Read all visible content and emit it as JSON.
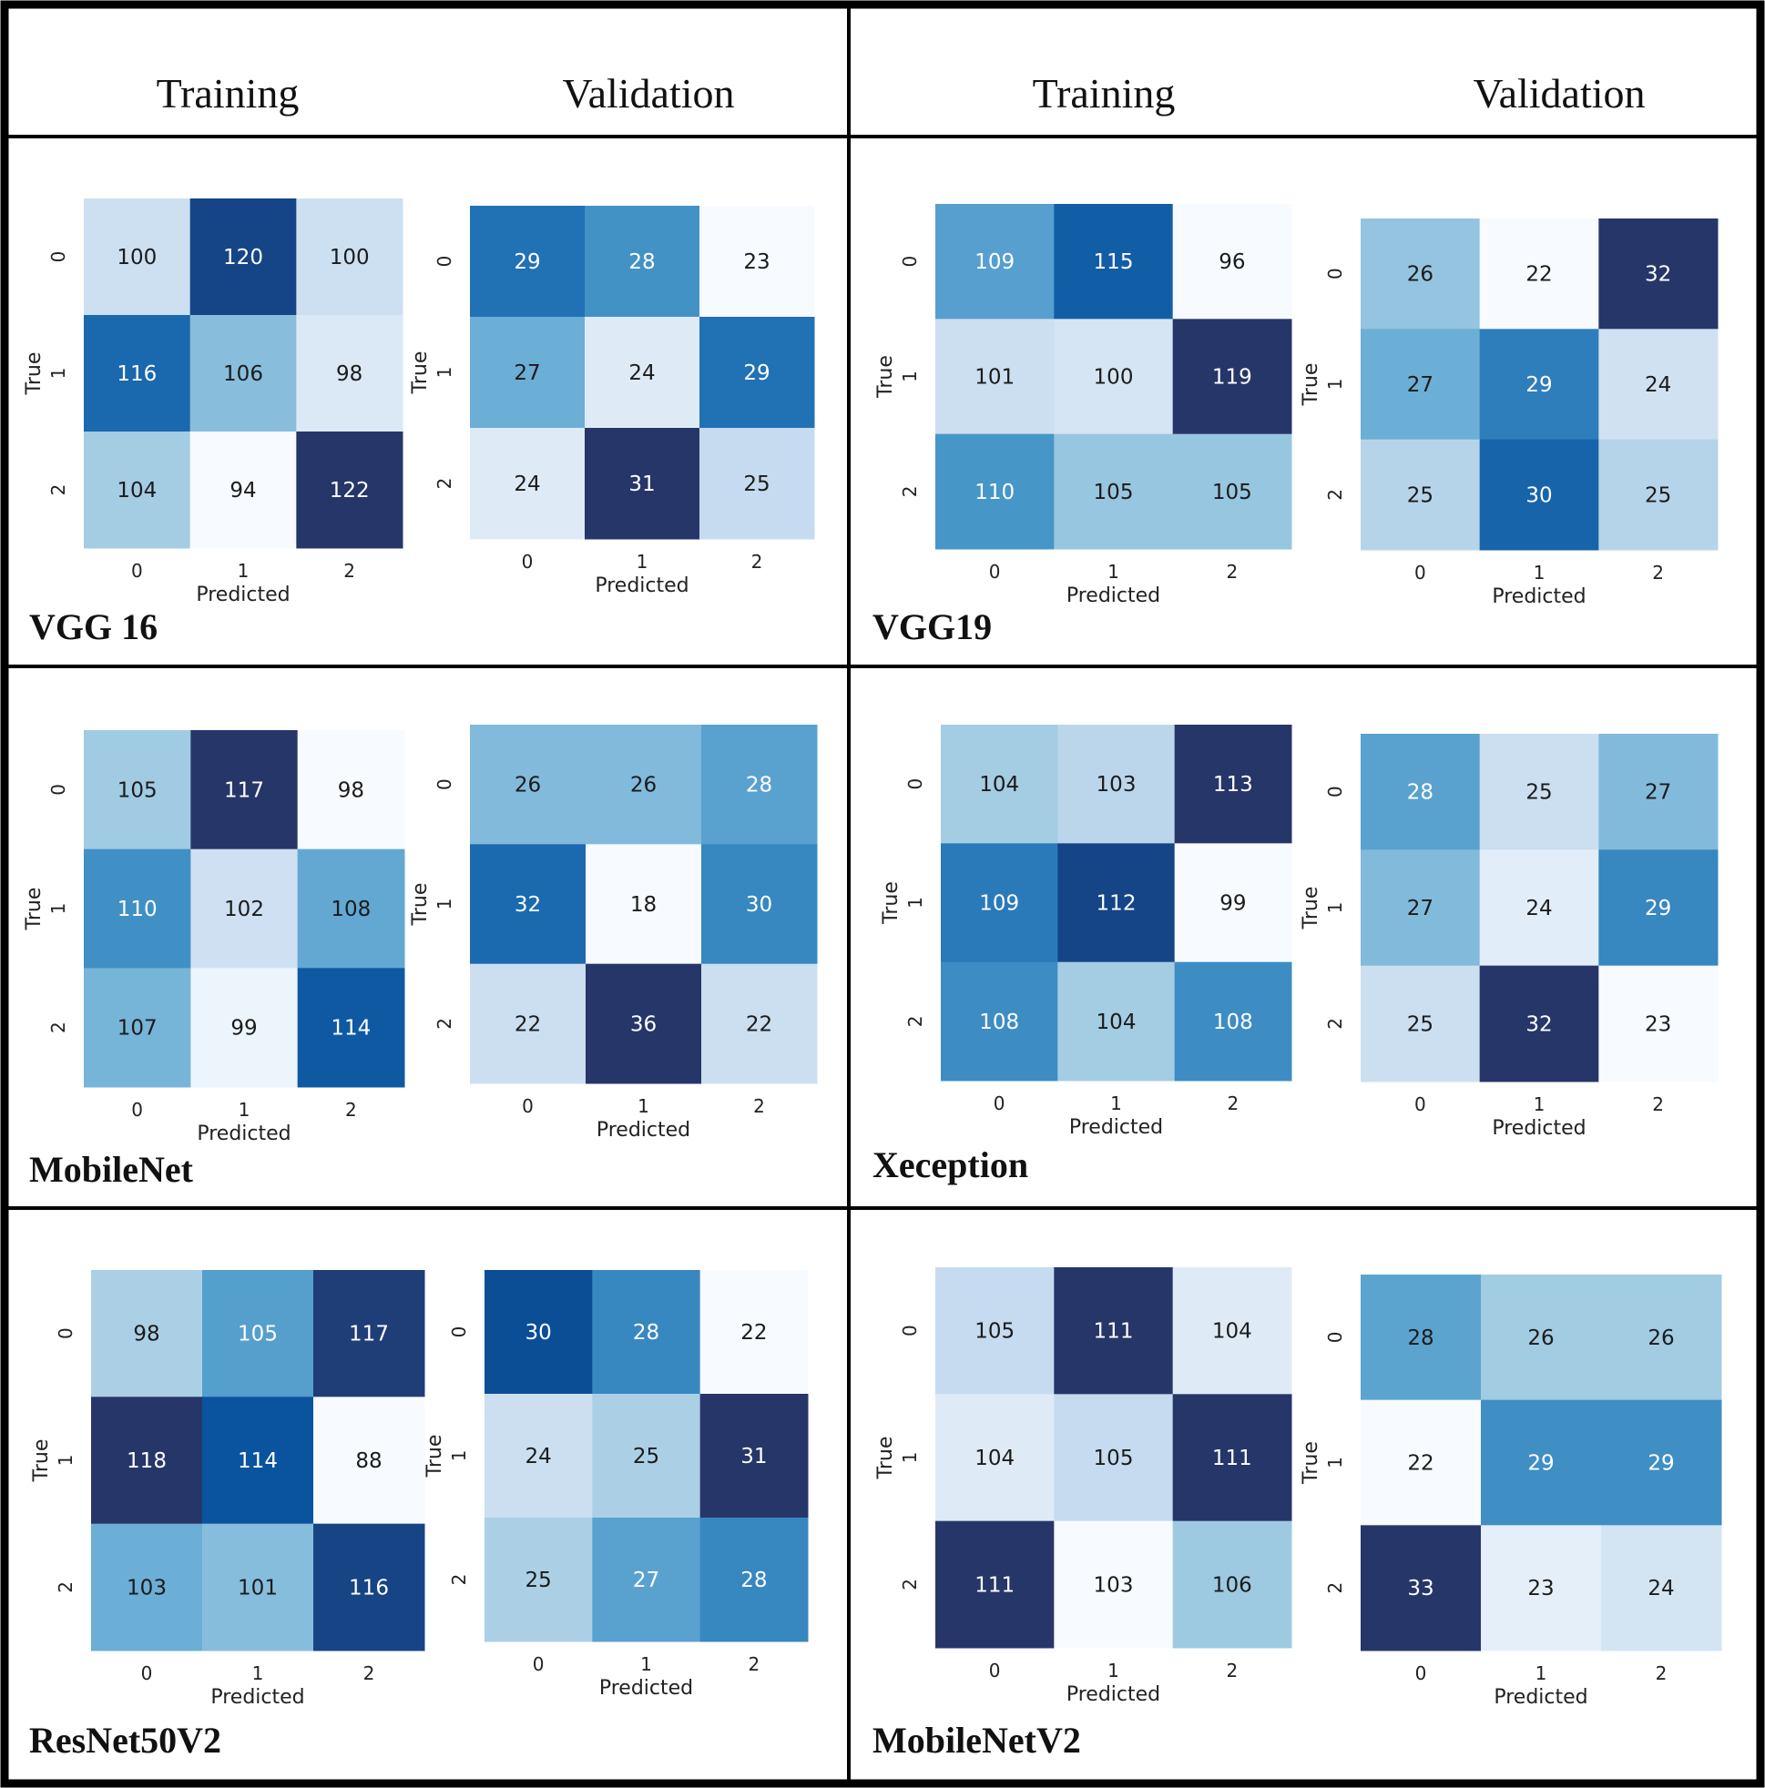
{
  "headers": {
    "left_training": "Training",
    "left_validation": "Validation",
    "right_training": "Training",
    "right_validation": "Validation"
  },
  "chart_data": [
    {
      "type": "heatmap",
      "model": "VGG 16",
      "split": "Training",
      "xlabel": "Predicted",
      "ylabel": "True",
      "x_ticks": [
        "0",
        "1",
        "2"
      ],
      "y_ticks": [
        "0",
        "1",
        "2"
      ],
      "matrix": [
        [
          100,
          120,
          100
        ],
        [
          116,
          106,
          98
        ],
        [
          104,
          94,
          122
        ]
      ]
    },
    {
      "type": "heatmap",
      "model": "VGG 16",
      "split": "Validation",
      "xlabel": "Predicted",
      "ylabel": "True",
      "x_ticks": [
        "0",
        "1",
        "2"
      ],
      "y_ticks": [
        "0",
        "1",
        "2"
      ],
      "matrix": [
        [
          29,
          28,
          23
        ],
        [
          27,
          24,
          29
        ],
        [
          24,
          31,
          25
        ]
      ]
    },
    {
      "type": "heatmap",
      "model": "VGG19",
      "split": "Training",
      "xlabel": "Predicted",
      "ylabel": "True",
      "x_ticks": [
        "0",
        "1",
        "2"
      ],
      "y_ticks": [
        "0",
        "1",
        "2"
      ],
      "matrix": [
        [
          109,
          115,
          96
        ],
        [
          101,
          100,
          119
        ],
        [
          110,
          105,
          105
        ]
      ]
    },
    {
      "type": "heatmap",
      "model": "VGG19",
      "split": "Validation",
      "xlabel": "Predicted",
      "ylabel": "True",
      "x_ticks": [
        "0",
        "1",
        "2"
      ],
      "y_ticks": [
        "0",
        "1",
        "2"
      ],
      "matrix": [
        [
          26,
          22,
          32
        ],
        [
          27,
          29,
          24
        ],
        [
          25,
          30,
          25
        ]
      ]
    },
    {
      "type": "heatmap",
      "model": "MobileNet",
      "split": "Training",
      "xlabel": "Predicted",
      "ylabel": "True",
      "x_ticks": [
        "0",
        "1",
        "2"
      ],
      "y_ticks": [
        "0",
        "1",
        "2"
      ],
      "matrix": [
        [
          105,
          117,
          98
        ],
        [
          110,
          102,
          108
        ],
        [
          107,
          99,
          114
        ]
      ]
    },
    {
      "type": "heatmap",
      "model": "MobileNet",
      "split": "Validation",
      "xlabel": "Predicted",
      "ylabel": "True",
      "x_ticks": [
        "0",
        "1",
        "2"
      ],
      "y_ticks": [
        "0",
        "1",
        "2"
      ],
      "matrix": [
        [
          26,
          26,
          28
        ],
        [
          32,
          18,
          30
        ],
        [
          22,
          36,
          22
        ]
      ]
    },
    {
      "type": "heatmap",
      "model": "Xeception",
      "split": "Training",
      "xlabel": "Predicted",
      "ylabel": "True",
      "x_ticks": [
        "0",
        "1",
        "2"
      ],
      "y_ticks": [
        "0",
        "1",
        "2"
      ],
      "matrix": [
        [
          104,
          103,
          113
        ],
        [
          109,
          112,
          99
        ],
        [
          108,
          104,
          108
        ]
      ]
    },
    {
      "type": "heatmap",
      "model": "Xeception",
      "split": "Validation",
      "xlabel": "Predicted",
      "ylabel": "True",
      "x_ticks": [
        "0",
        "1",
        "2"
      ],
      "y_ticks": [
        "0",
        "1",
        "2"
      ],
      "matrix": [
        [
          28,
          25,
          27
        ],
        [
          27,
          24,
          29
        ],
        [
          25,
          32,
          23
        ]
      ]
    },
    {
      "type": "heatmap",
      "model": "ResNet50V2",
      "split": "Training",
      "xlabel": "Predicted",
      "ylabel": "True",
      "x_ticks": [
        "0",
        "1",
        "2"
      ],
      "y_ticks": [
        "0",
        "1",
        "2"
      ],
      "matrix": [
        [
          98,
          105,
          117
        ],
        [
          118,
          114,
          88
        ],
        [
          103,
          101,
          116
        ]
      ]
    },
    {
      "type": "heatmap",
      "model": "ResNet50V2",
      "split": "Validation",
      "xlabel": "Predicted",
      "ylabel": "True",
      "x_ticks": [
        "0",
        "1",
        "2"
      ],
      "y_ticks": [
        "0",
        "1",
        "2"
      ],
      "matrix": [
        [
          30,
          28,
          22
        ],
        [
          24,
          25,
          31
        ],
        [
          25,
          27,
          28
        ]
      ]
    },
    {
      "type": "heatmap",
      "model": "MobileNetV2",
      "split": "Training",
      "xlabel": "Predicted",
      "ylabel": "True",
      "x_ticks": [
        "0",
        "1",
        "2"
      ],
      "y_ticks": [
        "0",
        "1",
        "2"
      ],
      "matrix": [
        [
          105,
          111,
          104
        ],
        [
          104,
          105,
          111
        ],
        [
          111,
          103,
          106
        ]
      ]
    },
    {
      "type": "heatmap",
      "model": "MobileNetV2",
      "split": "Validation",
      "xlabel": "Predicted",
      "ylabel": "True",
      "x_ticks": [
        "0",
        "1",
        "2"
      ],
      "y_ticks": [
        "0",
        "1",
        "2"
      ],
      "matrix": [
        [
          28,
          26,
          26
        ],
        [
          22,
          29,
          29
        ],
        [
          33,
          23,
          24
        ]
      ]
    }
  ],
  "colormap": {
    "name": "Blues",
    "stops": [
      "#f7fbff",
      "#deebf7",
      "#c6dbef",
      "#9ecae1",
      "#6baed6",
      "#4292c6",
      "#2171b5",
      "#08519c",
      "#273668"
    ]
  },
  "frame_color": "#000000"
}
